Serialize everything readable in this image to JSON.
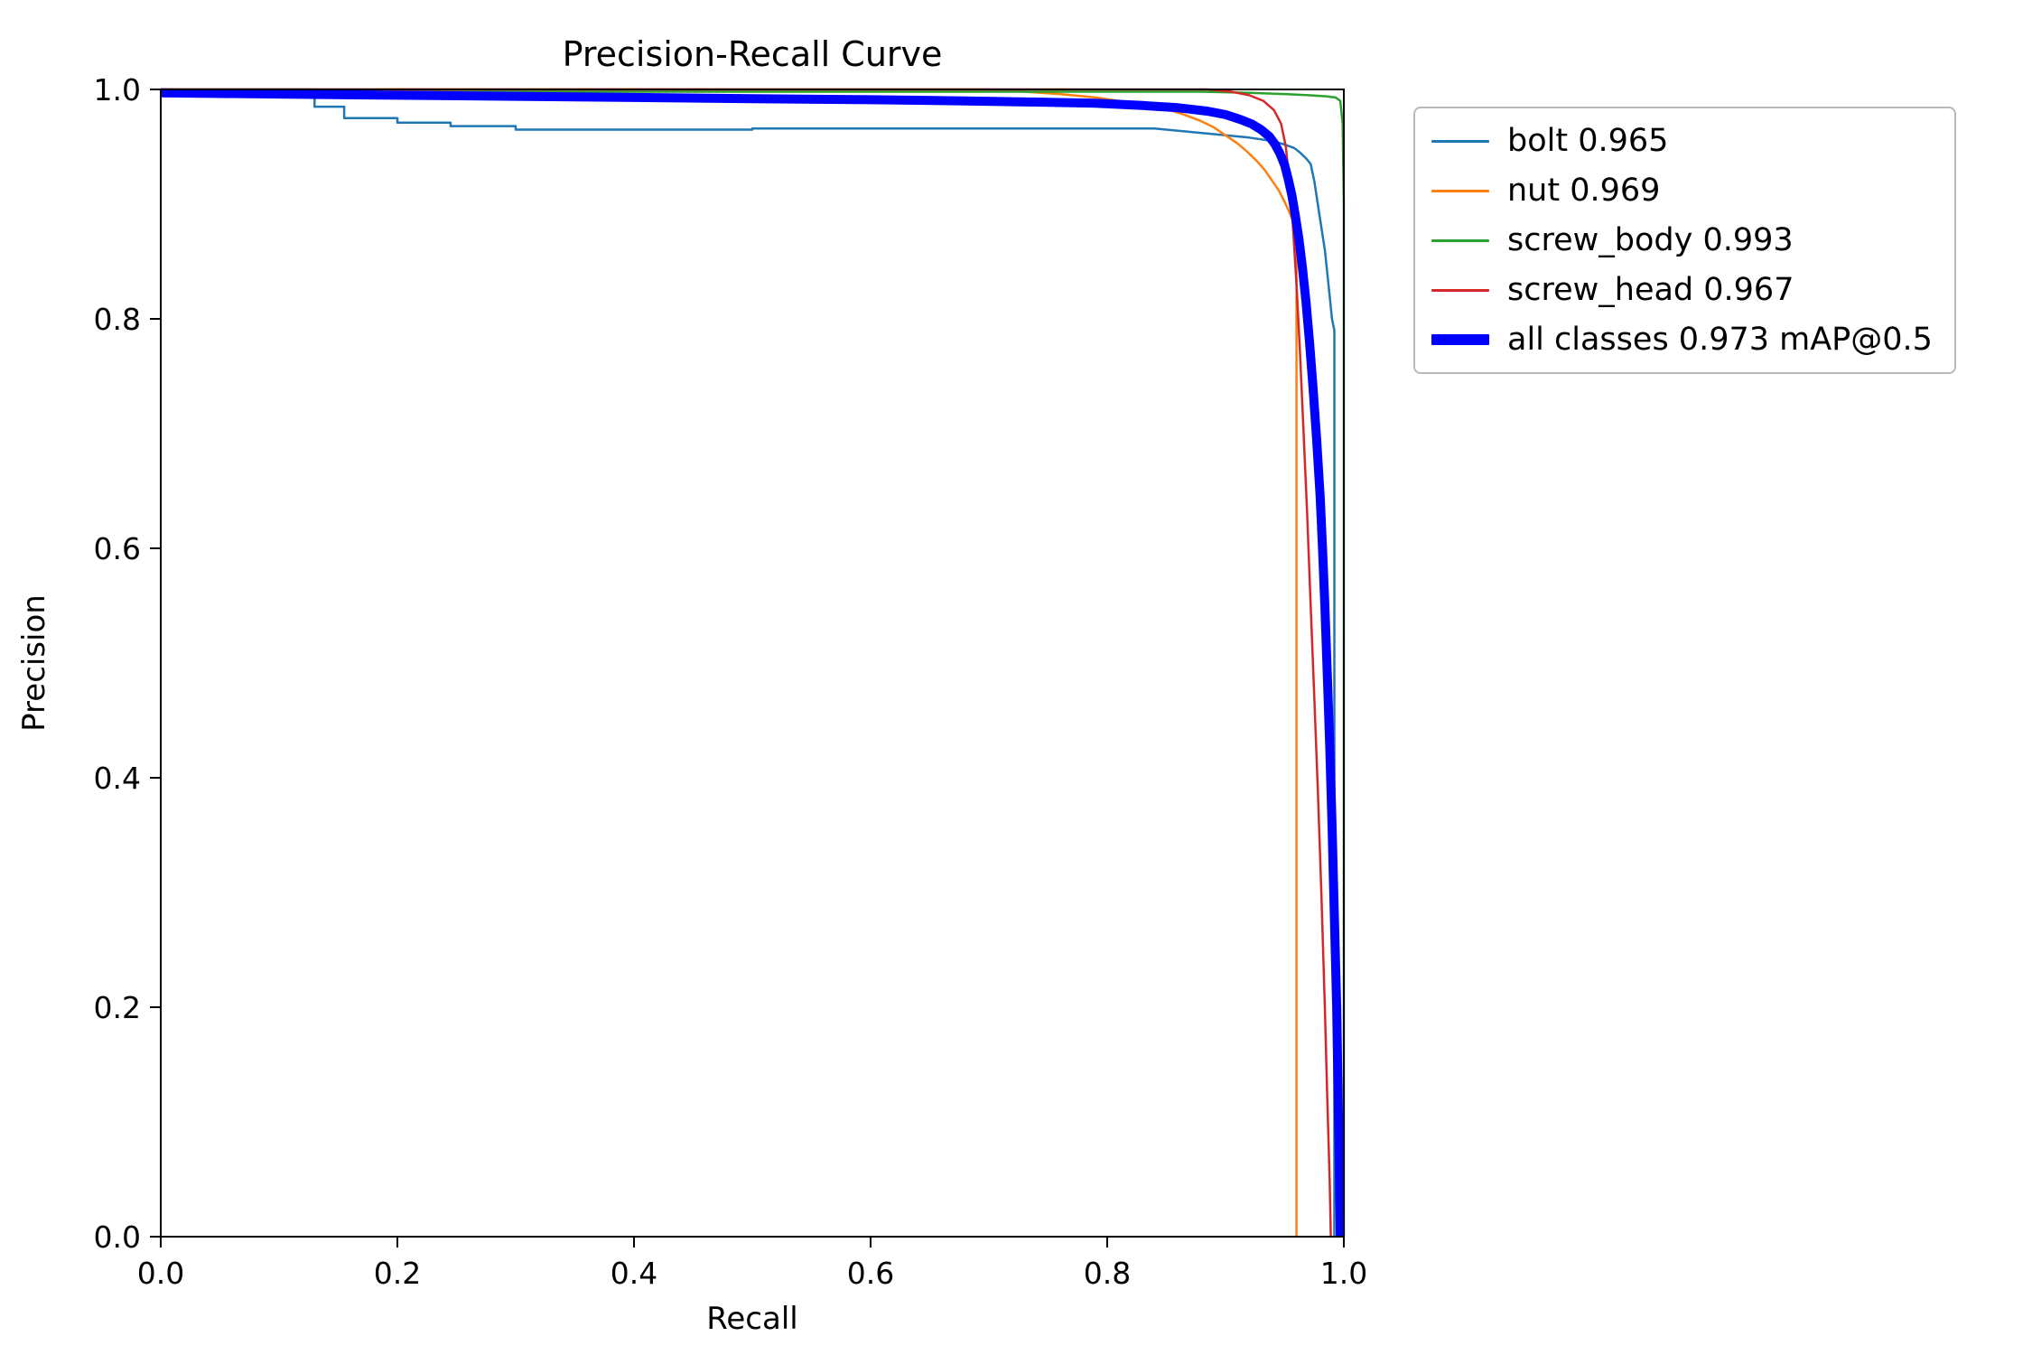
{
  "title": "Precision-Recall Curve",
  "chart_data": {
    "type": "line",
    "title": "Precision-Recall Curve",
    "xlabel": "Recall",
    "ylabel": "Precision",
    "xlim": [
      0.0,
      1.0
    ],
    "ylim": [
      0.0,
      1.0
    ],
    "xtick_labels": [
      "0.0",
      "0.2",
      "0.4",
      "0.6",
      "0.8",
      "1.0"
    ],
    "xtick_values": [
      0.0,
      0.2,
      0.4,
      0.6,
      0.8,
      1.0
    ],
    "ytick_labels": [
      "0.0",
      "0.2",
      "0.4",
      "0.6",
      "0.8",
      "1.0"
    ],
    "ytick_values": [
      0.0,
      0.2,
      0.4,
      0.6,
      0.8,
      1.0
    ],
    "grid": false,
    "legend_position": "outside-top-right",
    "axis_color": "#000000",
    "background_color": "#ffffff",
    "series": [
      {
        "name": "bolt 0.965",
        "color": "#1f77b4",
        "line_width": 2.5,
        "points": [
          [
            0,
            1
          ],
          [
            0.13,
            1
          ],
          [
            0.13,
            0.985
          ],
          [
            0.155,
            0.985
          ],
          [
            0.155,
            0.975
          ],
          [
            0.2,
            0.975
          ],
          [
            0.2,
            0.971
          ],
          [
            0.245,
            0.971
          ],
          [
            0.245,
            0.968
          ],
          [
            0.3,
            0.968
          ],
          [
            0.3,
            0.965
          ],
          [
            0.5,
            0.965
          ],
          [
            0.5,
            0.966
          ],
          [
            0.84,
            0.966
          ],
          [
            0.86,
            0.964
          ],
          [
            0.88,
            0.962
          ],
          [
            0.9,
            0.96
          ],
          [
            0.92,
            0.958
          ],
          [
            0.94,
            0.955
          ],
          [
            0.95,
            0.952
          ],
          [
            0.958,
            0.949
          ],
          [
            0.963,
            0.945
          ],
          [
            0.968,
            0.94
          ],
          [
            0.972,
            0.935
          ],
          [
            0.975,
            0.92
          ],
          [
            0.978,
            0.9
          ],
          [
            0.981,
            0.88
          ],
          [
            0.984,
            0.86
          ],
          [
            0.987,
            0.83
          ],
          [
            0.99,
            0.8
          ],
          [
            0.992,
            0.79
          ],
          [
            0.992,
            0
          ]
        ]
      },
      {
        "name": "nut 0.969",
        "color": "#ff7f0e",
        "line_width": 2.5,
        "points": [
          [
            0,
            1
          ],
          [
            0.7,
            1
          ],
          [
            0.73,
            0.998
          ],
          [
            0.76,
            0.996
          ],
          [
            0.79,
            0.993
          ],
          [
            0.81,
            0.99
          ],
          [
            0.83,
            0.987
          ],
          [
            0.85,
            0.983
          ],
          [
            0.865,
            0.978
          ],
          [
            0.878,
            0.973
          ],
          [
            0.89,
            0.967
          ],
          [
            0.9,
            0.96
          ],
          [
            0.91,
            0.953
          ],
          [
            0.918,
            0.946
          ],
          [
            0.926,
            0.938
          ],
          [
            0.933,
            0.93
          ],
          [
            0.939,
            0.921
          ],
          [
            0.945,
            0.912
          ],
          [
            0.95,
            0.902
          ],
          [
            0.954,
            0.893
          ],
          [
            0.957,
            0.885
          ],
          [
            0.959,
            0.878
          ],
          [
            0.96,
            0.872
          ],
          [
            0.96,
            0
          ]
        ]
      },
      {
        "name": "screw_body 0.993",
        "color": "#2ca02c",
        "line_width": 2.5,
        "points": [
          [
            0,
            0.998
          ],
          [
            0.88,
            0.998
          ],
          [
            0.92,
            0.997
          ],
          [
            0.95,
            0.996
          ],
          [
            0.97,
            0.995
          ],
          [
            0.985,
            0.994
          ],
          [
            0.993,
            0.993
          ],
          [
            0.997,
            0.99
          ],
          [
            0.999,
            0.97
          ],
          [
            1,
            0.9
          ],
          [
            1,
            0
          ]
        ]
      },
      {
        "name": "screw_head 0.967",
        "color": "#d62728",
        "line_width": 2.5,
        "points": [
          [
            0,
            1
          ],
          [
            0.885,
            1
          ],
          [
            0.905,
            0.998
          ],
          [
            0.92,
            0.995
          ],
          [
            0.932,
            0.99
          ],
          [
            0.941,
            0.982
          ],
          [
            0.947,
            0.97
          ],
          [
            0.951,
            0.95
          ],
          [
            0.954,
            0.92
          ],
          [
            0.957,
            0.88
          ],
          [
            0.96,
            0.83
          ],
          [
            0.963,
            0.77
          ],
          [
            0.966,
            0.7
          ],
          [
            0.969,
            0.63
          ],
          [
            0.972,
            0.55
          ],
          [
            0.975,
            0.47
          ],
          [
            0.978,
            0.39
          ],
          [
            0.981,
            0.3
          ],
          [
            0.984,
            0.2
          ],
          [
            0.986,
            0.12
          ],
          [
            0.988,
            0.05
          ],
          [
            0.989,
            0
          ]
        ]
      },
      {
        "name": "all classes 0.973 mAP@0.5",
        "color": "#0000ff",
        "line_width": 10,
        "points": [
          [
            0,
            0.997
          ],
          [
            0.1,
            0.996
          ],
          [
            0.2,
            0.995
          ],
          [
            0.3,
            0.994
          ],
          [
            0.4,
            0.993
          ],
          [
            0.5,
            0.992
          ],
          [
            0.6,
            0.991
          ],
          [
            0.68,
            0.99
          ],
          [
            0.74,
            0.989
          ],
          [
            0.79,
            0.988
          ],
          [
            0.83,
            0.986
          ],
          [
            0.86,
            0.984
          ],
          [
            0.885,
            0.981
          ],
          [
            0.9,
            0.978
          ],
          [
            0.912,
            0.974
          ],
          [
            0.922,
            0.97
          ],
          [
            0.93,
            0.965
          ],
          [
            0.937,
            0.959
          ],
          [
            0.942,
            0.952
          ],
          [
            0.946,
            0.944
          ],
          [
            0.95,
            0.934
          ],
          [
            0.953,
            0.922
          ],
          [
            0.956,
            0.908
          ],
          [
            0.959,
            0.89
          ],
          [
            0.962,
            0.87
          ],
          [
            0.965,
            0.845
          ],
          [
            0.968,
            0.815
          ],
          [
            0.971,
            0.78
          ],
          [
            0.974,
            0.74
          ],
          [
            0.977,
            0.695
          ],
          [
            0.98,
            0.645
          ],
          [
            0.982,
            0.6
          ],
          [
            0.984,
            0.55
          ],
          [
            0.986,
            0.49
          ],
          [
            0.988,
            0.43
          ],
          [
            0.99,
            0.36
          ],
          [
            0.992,
            0.28
          ],
          [
            0.994,
            0.2
          ],
          [
            0.995,
            0.13
          ],
          [
            0.996,
            0.07
          ],
          [
            0.997,
            0
          ]
        ]
      }
    ]
  }
}
